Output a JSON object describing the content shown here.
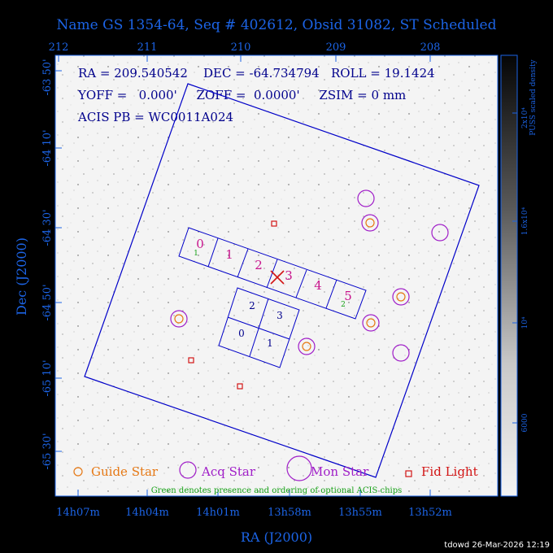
{
  "title": "Name GS 1354-64, Seq # 402612, Obsid 31082, ST Scheduled",
  "top_ticks": [
    "212",
    "211",
    "210",
    "209",
    "208"
  ],
  "bottom_ticks": [
    "14h07m",
    "14h04m",
    "14h01m",
    "13h58m",
    "13h55m",
    "13h52m"
  ],
  "left_ticks": [
    "-63 50'",
    "-64 10'",
    "-64 30'",
    "-64 50'",
    "-65 10'",
    "-65 30'"
  ],
  "xlabel": "RA (J2000)",
  "ylabel": "Dec (J2000)",
  "info": {
    "line1": "RA = 209.540542    DEC = -64.734794   ROLL = 19.1424",
    "line2": "YOFF =   0.000'     ZOFF =  0.0000'     ZSIM = 0 mm",
    "line3": "ACIS PB = WC0011A024"
  },
  "ccds_s": [
    "0",
    "1",
    "2",
    "3",
    "4",
    "5"
  ],
  "ccds_i": [
    "2",
    "3",
    "0",
    "1"
  ],
  "optional_marks": [
    "1",
    "2"
  ],
  "legend": {
    "guide": "Guide Star",
    "acq": "Acq Star",
    "mon": "Mon Star",
    "fid": "Fid Light",
    "note": "Green denotes presence and ordering of optional ACIS chips"
  },
  "colorbar": {
    "title": "PUSS scaled density",
    "labels": [
      "2x10⁴",
      "1.6x10⁴",
      "10⁴",
      "6000"
    ]
  },
  "footer": "tdowd 26-Mar-2026 12:19",
  "colors": {
    "frame": "#1c64e6",
    "ccd": "#0000c8",
    "s_label": "#c8148c",
    "i_label": "#00008c",
    "acq": "#a01ec8",
    "guide": "#e67814",
    "fid": "#d21414",
    "green": "#14a014"
  }
}
